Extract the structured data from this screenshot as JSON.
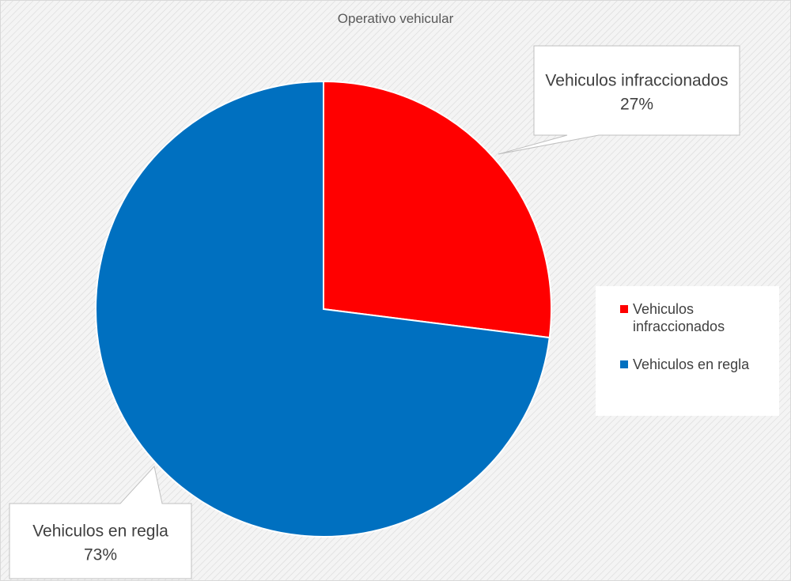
{
  "chart_data": {
    "type": "pie",
    "title": "Operativo vehicular",
    "slices": [
      {
        "label": "Vehiculos infraccionados",
        "value": 27,
        "value_label": "27%",
        "color": "#ff0000"
      },
      {
        "label": "Vehiculos en regla",
        "value": 73,
        "value_label": "73%",
        "color": "#0070c0"
      }
    ],
    "legend": {
      "position": "right",
      "entries": [
        "Vehiculos infraccionados",
        "Vehiculos en regla"
      ]
    },
    "background": "hatched-gray"
  }
}
